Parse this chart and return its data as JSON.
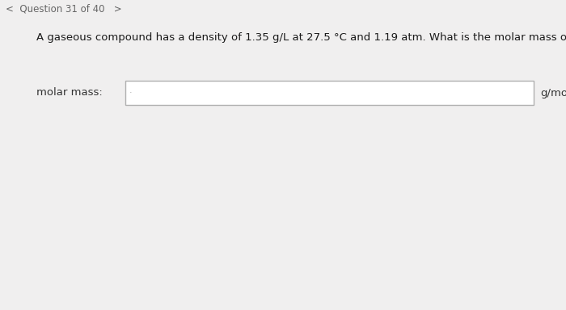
{
  "header_text": "Question 31 of 40",
  "question_text": "A gaseous compound has a density of 1.35 g/L at 27.5 °C and 1.19 atm. What is the molar mass of the compound?",
  "label_text": "molar mass:",
  "unit_text": "g/mol",
  "header_bg": "#dcdcdc",
  "main_bg": "#f0efef",
  "content_bg": "#f7f6f5",
  "header_text_color": "#666666",
  "question_color": "#1a1a1a",
  "label_color": "#333333",
  "unit_color": "#333333",
  "input_bg": "#ffffff",
  "input_border": "#b0b0b0",
  "header_fontsize": 8.5,
  "question_fontsize": 9.5,
  "label_fontsize": 9.5,
  "unit_fontsize": 9.5,
  "fig_width": 7.0,
  "fig_height": 3.84,
  "dpi": 100
}
